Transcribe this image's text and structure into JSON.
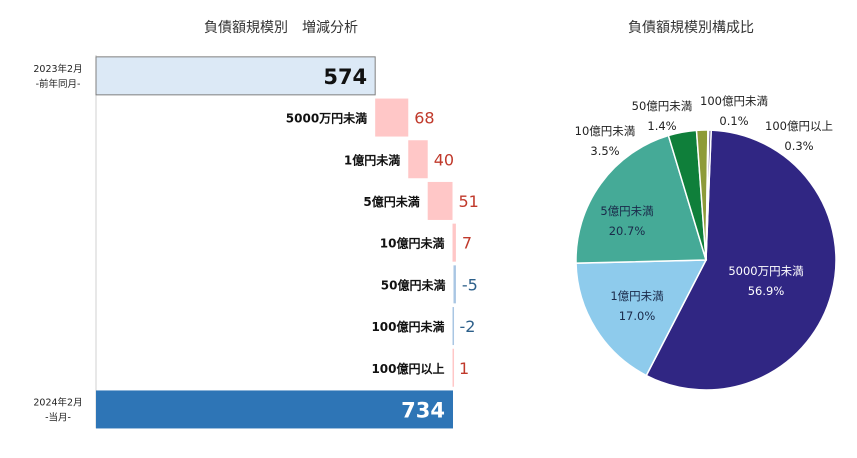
{
  "chart_data": [
    {
      "type": "bar",
      "title": "負債額規模別　増減分析",
      "start": {
        "label_line1": "2023年2月",
        "label_line2": "-前年同月-",
        "value": 574,
        "color": "#dce9f6"
      },
      "steps": [
        {
          "label": "5000万円未満",
          "value": 68,
          "display": "68"
        },
        {
          "label": "1億円未満",
          "value": 40,
          "display": "40"
        },
        {
          "label": "5億円未満",
          "value": 51,
          "display": "51"
        },
        {
          "label": "10億円未満",
          "value": 7,
          "display": "7"
        },
        {
          "label": "50億円未満",
          "value": -5,
          "display": "-5"
        },
        {
          "label": "100億円未満",
          "value": -2,
          "display": "-2"
        },
        {
          "label": "100億円以上",
          "value": 1,
          "display": "1"
        }
      ],
      "end": {
        "label_line1": "2024年2月",
        "label_line2": "-当月-",
        "value": 734,
        "color": "#2e75b6"
      },
      "increase_color": "#ffc7c7",
      "decrease_color": "#a9c6e3",
      "increase_text_color": "#c0392b",
      "decrease_text_color": "#2c5f8a"
    },
    {
      "type": "pie",
      "title": "負債額規模別構成比",
      "slices": [
        {
          "label": "5000万円未満",
          "percent": "56.9%",
          "value": 56.9,
          "color": "#302683"
        },
        {
          "label": "1億円未満",
          "percent": "17.0%",
          "value": 17.0,
          "color": "#8ecbec"
        },
        {
          "label": "5億円未満",
          "percent": "20.7%",
          "value": 20.7,
          "color": "#45aa97"
        },
        {
          "label": "10億円未満",
          "percent": "3.5%",
          "value": 3.5,
          "color": "#0f7f3a"
        },
        {
          "label": "50億円未満",
          "percent": "1.4%",
          "value": 1.4,
          "color": "#8e9b39"
        },
        {
          "label": "100億円未満",
          "percent": "0.1%",
          "value": 0.1,
          "color": "#6f6f3a"
        },
        {
          "label": "100億円以上",
          "percent": "0.3%",
          "value": 0.3,
          "color": "#5a4a86"
        }
      ]
    }
  ]
}
